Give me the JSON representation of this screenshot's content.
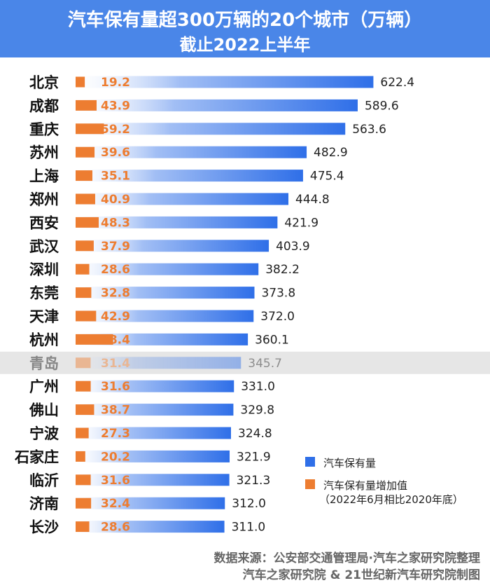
{
  "title": "汽车保有量超300万辆的20个城市（万辆）",
  "subtitle": "截止2022上半年",
  "legend": {
    "holdings": "汽车保有量",
    "increase_line1": "汽车保有量增加值",
    "increase_line2": "（2022年6月相比2020年底）"
  },
  "footer": {
    "line1": "数据来源：公安部交通管理局·汽车之家研究院整理",
    "line2": "汽车之家研究院 & 21世纪新汽车研究院制图"
  },
  "colors": {
    "header": "#4a86e8",
    "holdings": "#2f6fe8",
    "increase": "#ed7d31",
    "highlight_row": "#e6e6e6"
  },
  "chart_data": {
    "type": "bar",
    "orientation": "horizontal",
    "categories": [
      "北京",
      "成都",
      "重庆",
      "苏州",
      "上海",
      "郑州",
      "西安",
      "武汉",
      "深圳",
      "东莞",
      "天津",
      "杭州",
      "青岛",
      "广州",
      "佛山",
      "宁波",
      "石家庄",
      "临沂",
      "济南",
      "长沙"
    ],
    "series": [
      {
        "name": "汽车保有量",
        "values": [
          622.4,
          589.6,
          563.6,
          482.9,
          475.4,
          444.8,
          421.9,
          403.9,
          382.2,
          373.8,
          372.0,
          360.1,
          345.7,
          331.0,
          329.8,
          324.8,
          321.9,
          321.3,
          312.0,
          311.0
        ]
      },
      {
        "name": "汽车保有量增加值",
        "values": [
          19.2,
          43.9,
          59.2,
          39.6,
          35.1,
          40.9,
          48.3,
          37.9,
          28.6,
          32.8,
          42.9,
          78.4,
          31.4,
          31.6,
          38.7,
          27.3,
          20.2,
          31.6,
          32.4,
          28.6
        ]
      }
    ],
    "highlighted_category": "青岛",
    "value_format": "one-decimal"
  }
}
